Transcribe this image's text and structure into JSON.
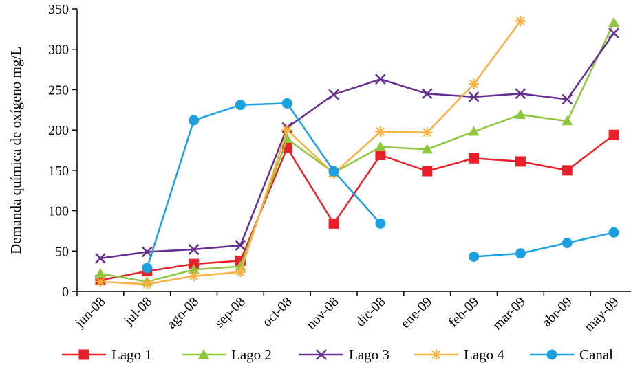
{
  "chart_data": {
    "type": "line",
    "title": "",
    "xlabel": "",
    "ylabel": "Demanda química de oxígeno mg/L",
    "ylim": [
      0,
      350
    ],
    "yticks": [
      0,
      50,
      100,
      150,
      200,
      250,
      300,
      350
    ],
    "grid": false,
    "legend_position": "bottom",
    "categories": [
      "jun-08",
      "jul-08",
      "ago-08",
      "sep-08",
      "oct-08",
      "nov-08",
      "dic-08",
      "ene-09",
      "feb-09",
      "mar-09",
      "abr-09",
      "may-09"
    ],
    "series": [
      {
        "name": "Lago 1",
        "color": "#e8202a",
        "marker": "square",
        "values": [
          14,
          25,
          34,
          38,
          178,
          84,
          169,
          149,
          165,
          161,
          150,
          194
        ]
      },
      {
        "name": "Lago 2",
        "color": "#8dc63f",
        "marker": "triangle",
        "values": [
          22,
          12,
          27,
          31,
          189,
          147,
          179,
          176,
          198,
          219,
          211,
          333
        ]
      },
      {
        "name": "Lago 3",
        "color": "#662d91",
        "marker": "x",
        "values": [
          41,
          49,
          52,
          57,
          203,
          244,
          263,
          245,
          241,
          245,
          238,
          320
        ]
      },
      {
        "name": "Lago 4",
        "color": "#fbb040",
        "marker": "asterisk",
        "values": [
          12,
          9,
          19,
          24,
          200,
          146,
          198,
          197,
          257,
          335,
          null,
          null
        ]
      },
      {
        "name": "Canal",
        "color": "#1ba1e2",
        "marker": "circle",
        "values": [
          null,
          29,
          212,
          231,
          233,
          149,
          84,
          null,
          43,
          47,
          60,
          73
        ]
      }
    ]
  }
}
